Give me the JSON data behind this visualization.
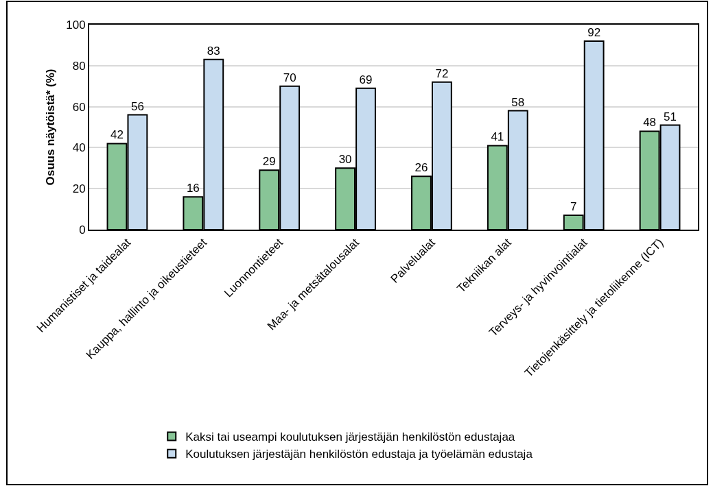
{
  "chart_data": {
    "type": "bar",
    "ylabel": "Osuus näytöistä* (%)",
    "categories": [
      "Humanistiset ja taidealat",
      "Kauppa, hallinto ja oikeustieteet",
      "Luonnontieteet",
      "Maa- ja metsätalousalat",
      "Palvelualat",
      "Tekniikan alat",
      "Terveys- ja hyvinvointialat",
      "Tietojenkäsittely ja tietoliikenne (ICT)"
    ],
    "series": [
      {
        "name": "Kaksi tai useampi koulutuksen järjestäjän henkilöstön edustajaa",
        "color": "#88c597",
        "values": [
          42,
          16,
          29,
          30,
          26,
          41,
          7,
          48
        ]
      },
      {
        "name": "Koulutuksen järjestäjän henkilöstön edustaja ja työelämän edustaja",
        "color": "#c6dbef",
        "values": [
          56,
          83,
          70,
          69,
          72,
          58,
          92,
          51
        ]
      }
    ],
    "ylim": [
      0,
      100
    ],
    "yticks": [
      0,
      20,
      40,
      60,
      80,
      100
    ],
    "grid": "y",
    "legend": "bottom",
    "data_labels": true
  }
}
